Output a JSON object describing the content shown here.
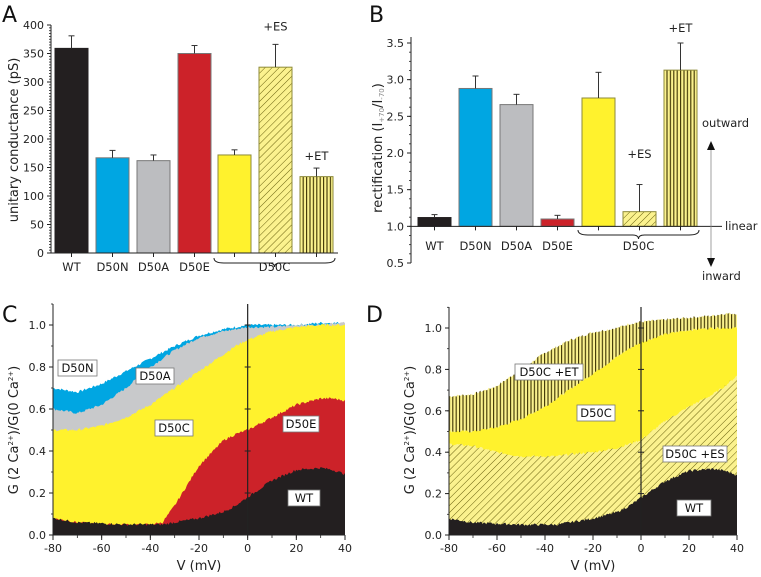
{
  "chart_data": [
    {
      "panel": "A",
      "type": "bar",
      "title": "",
      "ylabel": "unitary conductance (pS)",
      "xlabel": "",
      "ylim": [
        0,
        400
      ],
      "yticks": [
        0,
        50,
        100,
        150,
        200,
        250,
        300,
        350,
        400
      ],
      "ytick_labels": [
        "0",
        "50",
        "100",
        "150",
        "200",
        "250",
        "300",
        "350",
        "400"
      ],
      "categories": [
        "WT",
        "D50N",
        "D50A",
        "D50E",
        "D50C",
        "D50C +ES",
        "D50C +ET"
      ],
      "category_labels": [
        "WT",
        "D50N",
        "D50A",
        "D50E"
      ],
      "group_label": "D50C",
      "values": [
        359,
        167,
        162,
        350,
        172,
        326,
        134
      ],
      "errors": [
        22,
        13,
        10,
        14,
        9,
        40,
        15
      ],
      "bar_colors": [
        "#231f20",
        "#00a6e2",
        "#bcbdc0",
        "#cc2229",
        "#fff22d",
        "#fbf28e",
        "#fbf28e"
      ],
      "bar_patterns": [
        "solid",
        "solid",
        "solid",
        "solid",
        "solid",
        "diagonal",
        "vertical"
      ],
      "annotations": [
        "+ES",
        "+ET"
      ]
    },
    {
      "panel": "B",
      "type": "bar",
      "title": "",
      "ylabel": "rectification (I+70/I-70)",
      "ylabel_main": "rectification (I",
      "ylabel_sub1": "+70",
      "ylabel_mid": "/I",
      "ylabel_sub2": "-70",
      "ylabel_end": ")",
      "xlabel": "",
      "ylim": [
        0.5,
        3.5
      ],
      "baseline": 1.0,
      "yticks": [
        0.5,
        1.0,
        1.5,
        2.0,
        2.5,
        3.0,
        3.5
      ],
      "ytick_labels": [
        "0.5",
        "1.0",
        "1.5",
        "2.0",
        "2.5",
        "3.0",
        "3.5"
      ],
      "categories": [
        "WT",
        "D50N",
        "D50A",
        "D50E",
        "D50C",
        "D50C +ES",
        "D50C +ET"
      ],
      "category_labels": [
        "WT",
        "D50N",
        "D50A",
        "D50E"
      ],
      "group_label": "D50C",
      "values": [
        1.12,
        2.88,
        2.66,
        1.1,
        2.75,
        1.2,
        3.13
      ],
      "errors": [
        0.04,
        0.17,
        0.14,
        0.05,
        0.35,
        0.37,
        0.37
      ],
      "bar_colors": [
        "#231f20",
        "#00a6e2",
        "#bcbdc0",
        "#cc2229",
        "#fff22d",
        "#fbf28e",
        "#fbf28e"
      ],
      "bar_patterns": [
        "solid",
        "solid",
        "solid",
        "solid",
        "solid",
        "diagonal",
        "vertical"
      ],
      "annotations": [
        "+ES",
        "+ET"
      ],
      "side_labels": {
        "outward": "outward",
        "linear": "linear",
        "inward": "inward"
      }
    },
    {
      "panel": "C",
      "type": "area",
      "title": "",
      "xlabel": "V (mV)",
      "ylabel": "G (2 Ca2+)/G(0 Ca2+)",
      "xlim": [
        -80,
        40
      ],
      "ylim": [
        0,
        1.1
      ],
      "xticks": [
        -80,
        -60,
        -40,
        -20,
        0,
        20,
        40
      ],
      "xtick_labels": [
        "-80",
        "-60",
        "-40",
        "-20",
        "0",
        "20",
        "40"
      ],
      "yticks": [
        0.0,
        0.2,
        0.4,
        0.6,
        0.8,
        1.0
      ],
      "ytick_labels": [
        "0.0",
        "0.2",
        "0.4",
        "0.6",
        "0.8",
        "1.0"
      ],
      "x": [
        -80,
        -70,
        -60,
        -50,
        -40,
        -35,
        -30,
        -20,
        -10,
        -5,
        0,
        10,
        20,
        30,
        35,
        40
      ],
      "series": [
        {
          "name": "D50N",
          "color": "#00a6e2",
          "pattern": "solid",
          "values": [
            0.7,
            0.68,
            0.72,
            0.78,
            0.84,
            0.87,
            0.9,
            0.95,
            0.98,
            0.99,
            1.0,
            1.0,
            1.0,
            1.01,
            1.01,
            1.01
          ]
        },
        {
          "name": "D50A",
          "color": "#c8c9cb",
          "pattern": "solid",
          "values": [
            0.6,
            0.58,
            0.62,
            0.7,
            0.8,
            0.84,
            0.88,
            0.94,
            0.97,
            0.98,
            0.99,
            0.99,
            1.0,
            1.0,
            1.01,
            1.01
          ]
        },
        {
          "name": "D50C",
          "color": "#fff22d",
          "pattern": "solid",
          "values": [
            0.5,
            0.5,
            0.52,
            0.56,
            0.62,
            0.66,
            0.7,
            0.78,
            0.86,
            0.9,
            0.93,
            0.97,
            0.99,
            1.0,
            1.0,
            1.0
          ]
        },
        {
          "name": "D50E",
          "color": "#cc2229",
          "pattern": "solid",
          "values": [
            0.08,
            0.06,
            0.05,
            0.05,
            0.05,
            0.06,
            0.14,
            0.33,
            0.45,
            0.48,
            0.5,
            0.56,
            0.62,
            0.65,
            0.65,
            0.64
          ]
        },
        {
          "name": "WT",
          "color": "#231f20",
          "pattern": "solid",
          "values": [
            0.08,
            0.06,
            0.055,
            0.05,
            0.05,
            0.05,
            0.06,
            0.08,
            0.11,
            0.14,
            0.18,
            0.26,
            0.31,
            0.32,
            0.31,
            0.29
          ]
        }
      ],
      "box_labels": [
        "D50N",
        "D50A",
        "D50C",
        "D50E",
        "WT"
      ]
    },
    {
      "panel": "D",
      "type": "area",
      "title": "",
      "xlabel": "V (mV)",
      "ylabel": "G (2 Ca2+)/G(0 Ca2+)",
      "xlim": [
        -80,
        40
      ],
      "ylim": [
        0,
        1.1
      ],
      "xticks": [
        -80,
        -60,
        -40,
        -20,
        0,
        20,
        40
      ],
      "xtick_labels": [
        "-80",
        "-60",
        "-40",
        "-20",
        "0",
        "20",
        "40"
      ],
      "yticks": [
        0.0,
        0.2,
        0.4,
        0.6,
        0.8,
        1.0
      ],
      "ytick_labels": [
        "0.0",
        "0.2",
        "0.4",
        "0.6",
        "0.8",
        "1.0"
      ],
      "x": [
        -80,
        -70,
        -60,
        -50,
        -40,
        -35,
        -30,
        -20,
        -10,
        -5,
        0,
        10,
        20,
        30,
        35,
        40
      ],
      "series": [
        {
          "name": "D50C +ET",
          "color": "#fbf28e",
          "pattern": "vertical",
          "values": [
            0.67,
            0.68,
            0.72,
            0.8,
            0.88,
            0.91,
            0.94,
            0.98,
            1.0,
            1.02,
            1.03,
            1.04,
            1.05,
            1.06,
            1.07,
            1.07
          ]
        },
        {
          "name": "D50C",
          "color": "#fff22d",
          "pattern": "solid",
          "values": [
            0.5,
            0.5,
            0.52,
            0.56,
            0.62,
            0.66,
            0.7,
            0.78,
            0.86,
            0.9,
            0.93,
            0.97,
            0.99,
            1.0,
            1.0,
            1.0
          ]
        },
        {
          "name": "D50C +ES",
          "color": "#fbf28e",
          "pattern": "diagonal",
          "values": [
            0.44,
            0.43,
            0.4,
            0.38,
            0.38,
            0.38,
            0.39,
            0.4,
            0.42,
            0.44,
            0.46,
            0.55,
            0.62,
            0.68,
            0.72,
            0.77
          ]
        },
        {
          "name": "WT",
          "color": "#231f20",
          "pattern": "solid",
          "values": [
            0.08,
            0.06,
            0.055,
            0.05,
            0.05,
            0.05,
            0.06,
            0.08,
            0.11,
            0.14,
            0.18,
            0.26,
            0.31,
            0.32,
            0.31,
            0.29
          ]
        }
      ],
      "box_labels": [
        "D50C +ET",
        "D50C",
        "D50C +ES",
        "WT"
      ]
    }
  ]
}
